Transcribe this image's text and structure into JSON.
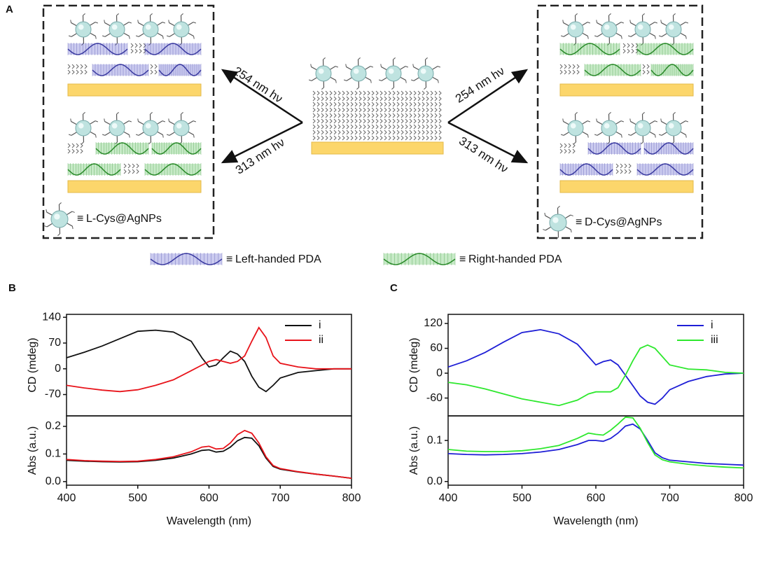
{
  "diagram": {
    "panel_label": "A",
    "arrow_labels": [
      "254 nm hν",
      "313 nm hν",
      "254 nm hν",
      "313 nm hν"
    ],
    "np_legend": [
      {
        "symbol": "≡",
        "label": "L-Cys@AgNPs",
        "color": "#111111"
      },
      {
        "symbol": "≡",
        "label": "D-Cys@AgNPs",
        "color": "#e8141b"
      }
    ],
    "pda_legend": [
      {
        "symbol": "≡",
        "label": "Left-handed PDA"
      },
      {
        "symbol": "≡",
        "label": "Right-handed PDA"
      }
    ]
  },
  "chart_data": [
    {
      "type": "line",
      "panel_label": "B",
      "ylabel": "CD (mdeg)",
      "legend": "upper right",
      "x": [
        400,
        425,
        450,
        475,
        500,
        525,
        550,
        575,
        590,
        600,
        610,
        620,
        630,
        640,
        650,
        660,
        670,
        680,
        690,
        700,
        725,
        750,
        775,
        800
      ],
      "xlim": [
        400,
        800
      ],
      "ylim": [
        -128,
        148
      ],
      "yticks": [
        140,
        70,
        0,
        -70
      ],
      "series": [
        {
          "name": "i",
          "color": "#111111",
          "values": [
            30,
            45,
            62,
            82,
            102,
            105,
            100,
            75,
            30,
            5,
            10,
            30,
            48,
            40,
            20,
            -20,
            -50,
            -62,
            -45,
            -25,
            -10,
            -5,
            0,
            0
          ]
        },
        {
          "name": "ii",
          "color": "#e8141b",
          "values": [
            -45,
            -52,
            -58,
            -62,
            -57,
            -45,
            -30,
            -5,
            10,
            20,
            25,
            20,
            15,
            20,
            35,
            75,
            112,
            85,
            35,
            15,
            5,
            0,
            0,
            0
          ]
        }
      ]
    },
    {
      "type": "line",
      "ylabel": "Abs (a.u.)",
      "xlabel": "Wavelength (nm)",
      "x": [
        400,
        425,
        450,
        475,
        500,
        525,
        550,
        575,
        590,
        600,
        610,
        620,
        630,
        640,
        650,
        660,
        670,
        680,
        690,
        700,
        725,
        750,
        775,
        800
      ],
      "xlim": [
        400,
        800
      ],
      "xticks": [
        400,
        500,
        600,
        700,
        800
      ],
      "ylim": [
        -0.013,
        0.238
      ],
      "yticks": [
        {
          "value": 0,
          "label": "0.0"
        },
        0.1,
        0.2
      ],
      "series": [
        {
          "name": "i",
          "color": "#111111",
          "values": [
            0.077,
            0.074,
            0.072,
            0.071,
            0.072,
            0.077,
            0.085,
            0.1,
            0.113,
            0.115,
            0.107,
            0.11,
            0.125,
            0.148,
            0.16,
            0.157,
            0.13,
            0.085,
            0.055,
            0.045,
            0.035,
            0.027,
            0.02,
            0.012
          ]
        },
        {
          "name": "ii",
          "color": "#e8141b",
          "values": [
            0.08,
            0.076,
            0.074,
            0.073,
            0.074,
            0.08,
            0.09,
            0.108,
            0.125,
            0.128,
            0.118,
            0.12,
            0.14,
            0.17,
            0.185,
            0.175,
            0.14,
            0.09,
            0.058,
            0.047,
            0.036,
            0.027,
            0.02,
            0.012
          ]
        }
      ]
    },
    {
      "type": "line",
      "panel_label": "C",
      "ylabel": "CD (mdeg)",
      "legend": "upper right",
      "x": [
        400,
        425,
        450,
        475,
        500,
        525,
        550,
        575,
        590,
        600,
        610,
        620,
        630,
        640,
        650,
        660,
        670,
        680,
        690,
        700,
        725,
        750,
        775,
        800
      ],
      "xlim": [
        400,
        800
      ],
      "ylim": [
        -103,
        142
      ],
      "yticks": [
        120,
        60,
        0,
        -60
      ],
      "series": [
        {
          "name": "i",
          "color": "#1f1fd6",
          "values": [
            15,
            30,
            50,
            75,
            98,
            105,
            95,
            70,
            40,
            20,
            28,
            32,
            20,
            -5,
            -30,
            -55,
            -70,
            -75,
            -60,
            -40,
            -20,
            -8,
            -2,
            0
          ]
        },
        {
          "name": "iii",
          "color": "#2ee82e",
          "values": [
            -22,
            -28,
            -38,
            -50,
            -62,
            -70,
            -78,
            -65,
            -50,
            -45,
            -45,
            -45,
            -35,
            -5,
            30,
            60,
            68,
            60,
            40,
            20,
            10,
            8,
            2,
            0
          ]
        }
      ]
    },
    {
      "type": "line",
      "ylabel": "Abs (a.u.)",
      "xlabel": "Wavelength (nm)",
      "x": [
        400,
        425,
        450,
        475,
        500,
        525,
        550,
        575,
        590,
        600,
        610,
        620,
        630,
        640,
        650,
        660,
        670,
        680,
        690,
        700,
        725,
        750,
        775,
        800
      ],
      "xlim": [
        400,
        800
      ],
      "xticks": [
        400,
        500,
        600,
        700,
        800
      ],
      "ylim": [
        -0.009,
        0.16
      ],
      "yticks": [
        {
          "value": 0,
          "label": "0.0"
        },
        0.1
      ],
      "series": [
        {
          "name": "i",
          "color": "#1f1fd6",
          "values": [
            0.068,
            0.066,
            0.065,
            0.066,
            0.068,
            0.072,
            0.078,
            0.09,
            0.1,
            0.1,
            0.098,
            0.105,
            0.118,
            0.135,
            0.14,
            0.128,
            0.1,
            0.07,
            0.058,
            0.052,
            0.048,
            0.044,
            0.042,
            0.04
          ]
        },
        {
          "name": "iii",
          "color": "#2ee82e",
          "values": [
            0.078,
            0.074,
            0.073,
            0.073,
            0.075,
            0.08,
            0.088,
            0.105,
            0.118,
            0.115,
            0.113,
            0.125,
            0.14,
            0.157,
            0.155,
            0.13,
            0.095,
            0.065,
            0.053,
            0.048,
            0.042,
            0.038,
            0.035,
            0.033
          ]
        }
      ]
    }
  ]
}
